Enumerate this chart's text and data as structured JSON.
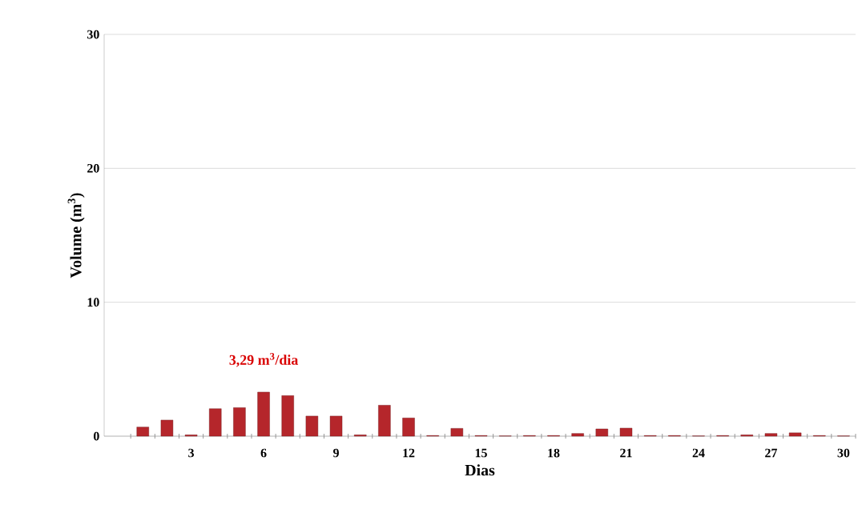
{
  "chart_data": {
    "type": "bar",
    "xlabel": "Dias",
    "ylabel": "Volume (m$^{3}$)",
    "categories": [
      null,
      null,
      "3",
      null,
      null,
      "6",
      null,
      null,
      "9",
      null,
      null,
      "12",
      null,
      null,
      "15",
      null,
      null,
      "18",
      null,
      null,
      "21",
      null,
      null,
      "24",
      null,
      null,
      "27",
      null,
      null,
      "30"
    ],
    "values": [
      0.68,
      1.2,
      0.1,
      2.05,
      2.13,
      3.29,
      3.03,
      1.5,
      1.5,
      0.1,
      2.31,
      1.36,
      0.05,
      0.58,
      0.05,
      0.02,
      0.05,
      0.05,
      0.2,
      0.54,
      0.6,
      0.05,
      0.05,
      0.02,
      0.05,
      0.1,
      0.2,
      0.25,
      0.05,
      0.02
    ],
    "color": "#b5262b",
    "ylim": [
      0,
      30
    ],
    "yticks": [
      0,
      10,
      20,
      30
    ],
    "grid": "y",
    "annotations": [
      {
        "text": "3,29 m$^{3}$/dia",
        "x": "6",
        "y": 3.29
      }
    ]
  }
}
